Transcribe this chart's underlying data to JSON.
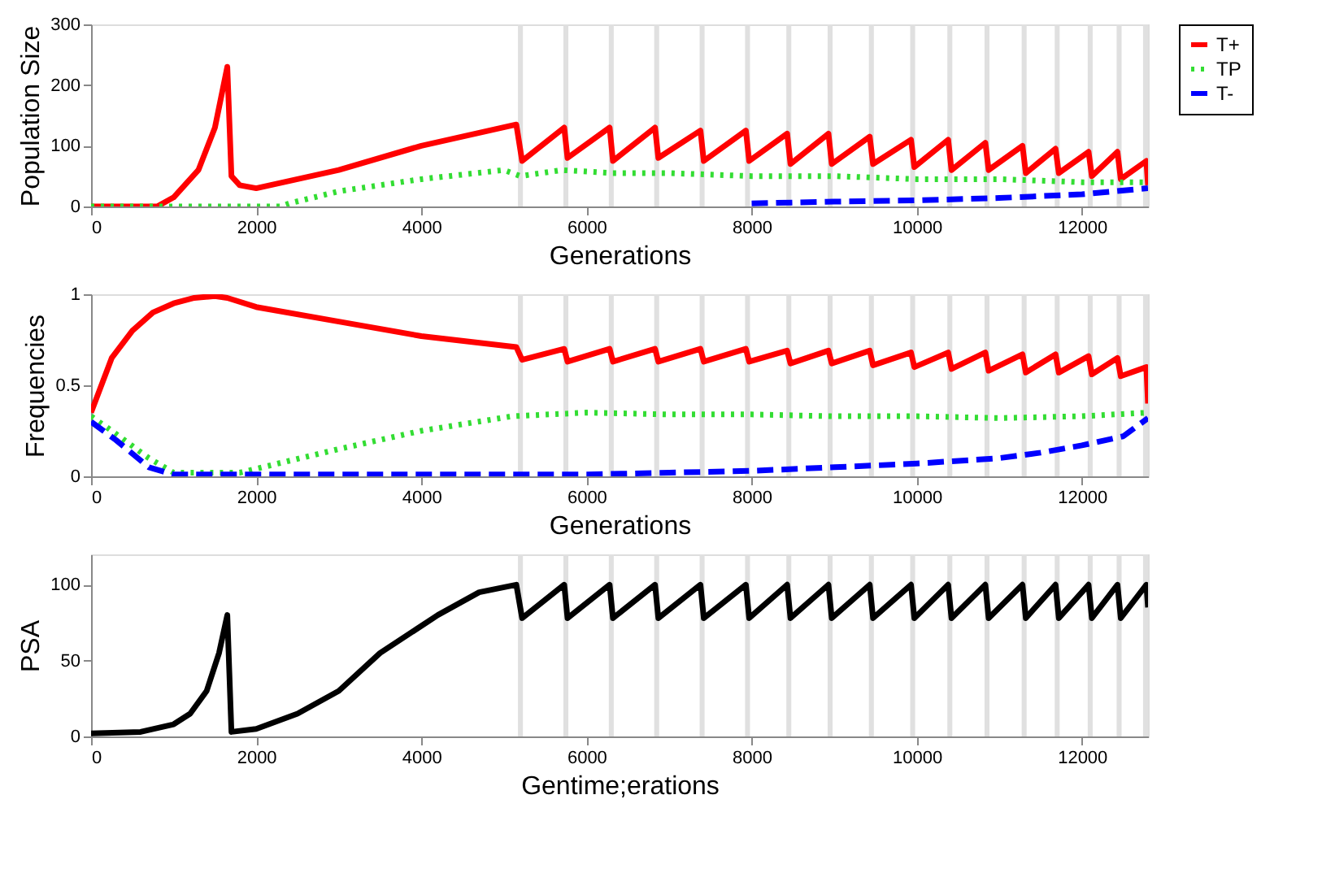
{
  "chart_data": [
    {
      "type": "line",
      "ylabel": "Population Size",
      "xlabel": "Generations",
      "xlim": [
        0,
        12800
      ],
      "xticks": [
        0,
        2000,
        4000,
        6000,
        8000,
        10000,
        12000
      ],
      "ylim": [
        0,
        300
      ],
      "yticks": [
        0,
        100,
        200,
        300
      ],
      "grid": false,
      "legend": "right",
      "marker": "none",
      "bands": [
        {
          "axis": "x",
          "from": 5170,
          "to": 5230,
          "color": "#e0e0e0"
        },
        {
          "axis": "x",
          "from": 5720,
          "to": 5780,
          "color": "#e0e0e0"
        },
        {
          "axis": "x",
          "from": 6270,
          "to": 6330,
          "color": "#e0e0e0"
        },
        {
          "axis": "x",
          "from": 6820,
          "to": 6880,
          "color": "#e0e0e0"
        },
        {
          "axis": "x",
          "from": 7370,
          "to": 7430,
          "color": "#e0e0e0"
        },
        {
          "axis": "x",
          "from": 7920,
          "to": 7980,
          "color": "#e0e0e0"
        },
        {
          "axis": "x",
          "from": 8420,
          "to": 8480,
          "color": "#e0e0e0"
        },
        {
          "axis": "x",
          "from": 8920,
          "to": 8980,
          "color": "#e0e0e0"
        },
        {
          "axis": "x",
          "from": 9420,
          "to": 9480,
          "color": "#e0e0e0"
        },
        {
          "axis": "x",
          "from": 9920,
          "to": 9980,
          "color": "#e0e0e0"
        },
        {
          "axis": "x",
          "from": 10370,
          "to": 10430,
          "color": "#e0e0e0"
        },
        {
          "axis": "x",
          "from": 10820,
          "to": 10880,
          "color": "#e0e0e0"
        },
        {
          "axis": "x",
          "from": 11270,
          "to": 11330,
          "color": "#e0e0e0"
        },
        {
          "axis": "x",
          "from": 11670,
          "to": 11730,
          "color": "#e0e0e0"
        },
        {
          "axis": "x",
          "from": 12070,
          "to": 12130,
          "color": "#e0e0e0"
        },
        {
          "axis": "x",
          "from": 12420,
          "to": 12480,
          "color": "#e0e0e0"
        },
        {
          "axis": "x",
          "from": 12740,
          "to": 12800,
          "color": "#e0e0e0"
        }
      ],
      "series": [
        {
          "name": "T+",
          "color": "#ff0000",
          "line_style": "solid",
          "x": [
            0,
            800,
            1000,
            1300,
            1500,
            1650,
            1700,
            1800,
            2000,
            3000,
            4000,
            5150,
            5220,
            5730,
            5770,
            6280,
            6320,
            6830,
            6870,
            7380,
            7420,
            7930,
            7970,
            8430,
            8470,
            8930,
            8970,
            9430,
            9470,
            9930,
            9970,
            10380,
            10420,
            10830,
            10870,
            11280,
            11320,
            11680,
            11720,
            12080,
            12120,
            12430,
            12470,
            12780,
            12800
          ],
          "values": [
            0,
            0,
            15,
            60,
            130,
            230,
            50,
            35,
            30,
            60,
            100,
            135,
            75,
            130,
            80,
            130,
            75,
            130,
            80,
            125,
            75,
            125,
            75,
            120,
            70,
            120,
            70,
            115,
            70,
            110,
            65,
            110,
            60,
            105,
            60,
            100,
            55,
            95,
            55,
            90,
            50,
            90,
            45,
            75,
            35
          ]
        },
        {
          "name": "TP",
          "color": "#33dd33",
          "line_style": "dotted",
          "x": [
            0,
            2300,
            2400,
            3000,
            4000,
            5000,
            5200,
            5700,
            6300,
            7000,
            8000,
            9000,
            10000,
            11000,
            12000,
            12800
          ],
          "values": [
            0,
            0,
            5,
            25,
            45,
            60,
            50,
            60,
            55,
            55,
            50,
            50,
            45,
            45,
            40,
            40
          ]
        },
        {
          "name": "T-",
          "color": "#0000ff",
          "line_style": "dashed",
          "x": [
            8000,
            9000,
            10000,
            11000,
            12000,
            12800
          ],
          "values": [
            5,
            8,
            10,
            14,
            20,
            30
          ]
        }
      ]
    },
    {
      "type": "line",
      "ylabel": "Frequencies",
      "xlabel": "Generations",
      "xlim": [
        0,
        12800
      ],
      "xticks": [
        0,
        2000,
        4000,
        6000,
        8000,
        10000,
        12000
      ],
      "ylim": [
        0,
        1
      ],
      "yticks": [
        0,
        0.5,
        1
      ],
      "grid": false,
      "legend": "right",
      "marker": "none",
      "bands": [
        {
          "axis": "x",
          "from": 5170,
          "to": 5230,
          "color": "#e0e0e0"
        },
        {
          "axis": "x",
          "from": 5720,
          "to": 5780,
          "color": "#e0e0e0"
        },
        {
          "axis": "x",
          "from": 6270,
          "to": 6330,
          "color": "#e0e0e0"
        },
        {
          "axis": "x",
          "from": 6820,
          "to": 6880,
          "color": "#e0e0e0"
        },
        {
          "axis": "x",
          "from": 7370,
          "to": 7430,
          "color": "#e0e0e0"
        },
        {
          "axis": "x",
          "from": 7920,
          "to": 7980,
          "color": "#e0e0e0"
        },
        {
          "axis": "x",
          "from": 8420,
          "to": 8480,
          "color": "#e0e0e0"
        },
        {
          "axis": "x",
          "from": 8920,
          "to": 8980,
          "color": "#e0e0e0"
        },
        {
          "axis": "x",
          "from": 9420,
          "to": 9480,
          "color": "#e0e0e0"
        },
        {
          "axis": "x",
          "from": 9920,
          "to": 9980,
          "color": "#e0e0e0"
        },
        {
          "axis": "x",
          "from": 10370,
          "to": 10430,
          "color": "#e0e0e0"
        },
        {
          "axis": "x",
          "from": 10820,
          "to": 10880,
          "color": "#e0e0e0"
        },
        {
          "axis": "x",
          "from": 11270,
          "to": 11330,
          "color": "#e0e0e0"
        },
        {
          "axis": "x",
          "from": 11670,
          "to": 11730,
          "color": "#e0e0e0"
        },
        {
          "axis": "x",
          "from": 12070,
          "to": 12130,
          "color": "#e0e0e0"
        },
        {
          "axis": "x",
          "from": 12420,
          "to": 12480,
          "color": "#e0e0e0"
        },
        {
          "axis": "x",
          "from": 12740,
          "to": 12800,
          "color": "#e0e0e0"
        }
      ],
      "series": [
        {
          "name": "T+",
          "color": "#ff0000",
          "line_style": "solid",
          "x": [
            0,
            250,
            500,
            750,
            1000,
            1250,
            1500,
            1650,
            2000,
            3000,
            4000,
            5150,
            5220,
            5730,
            5770,
            6280,
            6320,
            6830,
            6870,
            7380,
            7420,
            7930,
            7970,
            8430,
            8470,
            8930,
            8970,
            9430,
            9470,
            9930,
            9970,
            10380,
            10420,
            10830,
            10870,
            11280,
            11320,
            11680,
            11720,
            12080,
            12120,
            12430,
            12470,
            12780,
            12800
          ],
          "values": [
            0.35,
            0.65,
            0.8,
            0.9,
            0.95,
            0.98,
            0.99,
            0.98,
            0.93,
            0.85,
            0.77,
            0.71,
            0.64,
            0.7,
            0.63,
            0.7,
            0.63,
            0.7,
            0.63,
            0.7,
            0.63,
            0.7,
            0.63,
            0.69,
            0.62,
            0.69,
            0.62,
            0.69,
            0.61,
            0.68,
            0.6,
            0.68,
            0.59,
            0.68,
            0.58,
            0.67,
            0.57,
            0.67,
            0.57,
            0.66,
            0.56,
            0.65,
            0.55,
            0.6,
            0.4
          ]
        },
        {
          "name": "TP",
          "color": "#33dd33",
          "line_style": "dotted",
          "x": [
            0,
            250,
            700,
            1000,
            1800,
            3000,
            4000,
            5100,
            6000,
            7000,
            8000,
            9000,
            10000,
            11000,
            12000,
            12800
          ],
          "values": [
            0.33,
            0.25,
            0.1,
            0.02,
            0.02,
            0.15,
            0.25,
            0.33,
            0.35,
            0.34,
            0.34,
            0.33,
            0.33,
            0.32,
            0.33,
            0.35
          ]
        },
        {
          "name": "T-",
          "color": "#0000ff",
          "line_style": "dashed",
          "x": [
            0,
            300,
            700,
            1000,
            2000,
            4000,
            6000,
            7000,
            8000,
            9000,
            10000,
            11000,
            11500,
            12000,
            12500,
            12800
          ],
          "values": [
            0.3,
            0.2,
            0.05,
            0.01,
            0.01,
            0.01,
            0.01,
            0.02,
            0.03,
            0.05,
            0.07,
            0.1,
            0.13,
            0.17,
            0.22,
            0.32
          ]
        }
      ]
    },
    {
      "type": "line",
      "ylabel": "PSA",
      "xlabel": "Gentime;erations",
      "xlim": [
        0,
        12800
      ],
      "xticks": [
        0,
        2000,
        4000,
        6000,
        8000,
        10000,
        12000
      ],
      "ylim": [
        0,
        120
      ],
      "yticks": [
        0,
        50,
        100
      ],
      "grid": false,
      "marker": "none",
      "bands": [
        {
          "axis": "x",
          "from": 5170,
          "to": 5230,
          "color": "#e0e0e0"
        },
        {
          "axis": "x",
          "from": 5720,
          "to": 5780,
          "color": "#e0e0e0"
        },
        {
          "axis": "x",
          "from": 6270,
          "to": 6330,
          "color": "#e0e0e0"
        },
        {
          "axis": "x",
          "from": 6820,
          "to": 6880,
          "color": "#e0e0e0"
        },
        {
          "axis": "x",
          "from": 7370,
          "to": 7430,
          "color": "#e0e0e0"
        },
        {
          "axis": "x",
          "from": 7920,
          "to": 7980,
          "color": "#e0e0e0"
        },
        {
          "axis": "x",
          "from": 8420,
          "to": 8480,
          "color": "#e0e0e0"
        },
        {
          "axis": "x",
          "from": 8920,
          "to": 8980,
          "color": "#e0e0e0"
        },
        {
          "axis": "x",
          "from": 9420,
          "to": 9480,
          "color": "#e0e0e0"
        },
        {
          "axis": "x",
          "from": 9920,
          "to": 9980,
          "color": "#e0e0e0"
        },
        {
          "axis": "x",
          "from": 10370,
          "to": 10430,
          "color": "#e0e0e0"
        },
        {
          "axis": "x",
          "from": 10820,
          "to": 10880,
          "color": "#e0e0e0"
        },
        {
          "axis": "x",
          "from": 11270,
          "to": 11330,
          "color": "#e0e0e0"
        },
        {
          "axis": "x",
          "from": 11670,
          "to": 11730,
          "color": "#e0e0e0"
        },
        {
          "axis": "x",
          "from": 12070,
          "to": 12130,
          "color": "#e0e0e0"
        },
        {
          "axis": "x",
          "from": 12420,
          "to": 12480,
          "color": "#e0e0e0"
        },
        {
          "axis": "x",
          "from": 12740,
          "to": 12800,
          "color": "#e0e0e0"
        }
      ],
      "series": [
        {
          "color": "#000000",
          "line_style": "solid",
          "x": [
            0,
            600,
            1000,
            1200,
            1400,
            1550,
            1650,
            1700,
            2000,
            2500,
            3000,
            3500,
            4200,
            4700,
            5150,
            5220,
            5730,
            5770,
            6280,
            6320,
            6830,
            6870,
            7380,
            7420,
            7930,
            7970,
            8430,
            8470,
            8930,
            8970,
            9430,
            9470,
            9930,
            9970,
            10380,
            10420,
            10830,
            10870,
            11280,
            11320,
            11680,
            11720,
            12080,
            12120,
            12430,
            12470,
            12780,
            12800
          ],
          "values": [
            2,
            3,
            8,
            15,
            30,
            55,
            80,
            3,
            5,
            15,
            30,
            55,
            80,
            95,
            100,
            78,
            100,
            78,
            100,
            78,
            100,
            78,
            100,
            78,
            100,
            78,
            100,
            78,
            100,
            78,
            100,
            78,
            100,
            78,
            100,
            78,
            100,
            78,
            100,
            78,
            100,
            78,
            100,
            78,
            100,
            78,
            100,
            85
          ]
        }
      ]
    }
  ]
}
